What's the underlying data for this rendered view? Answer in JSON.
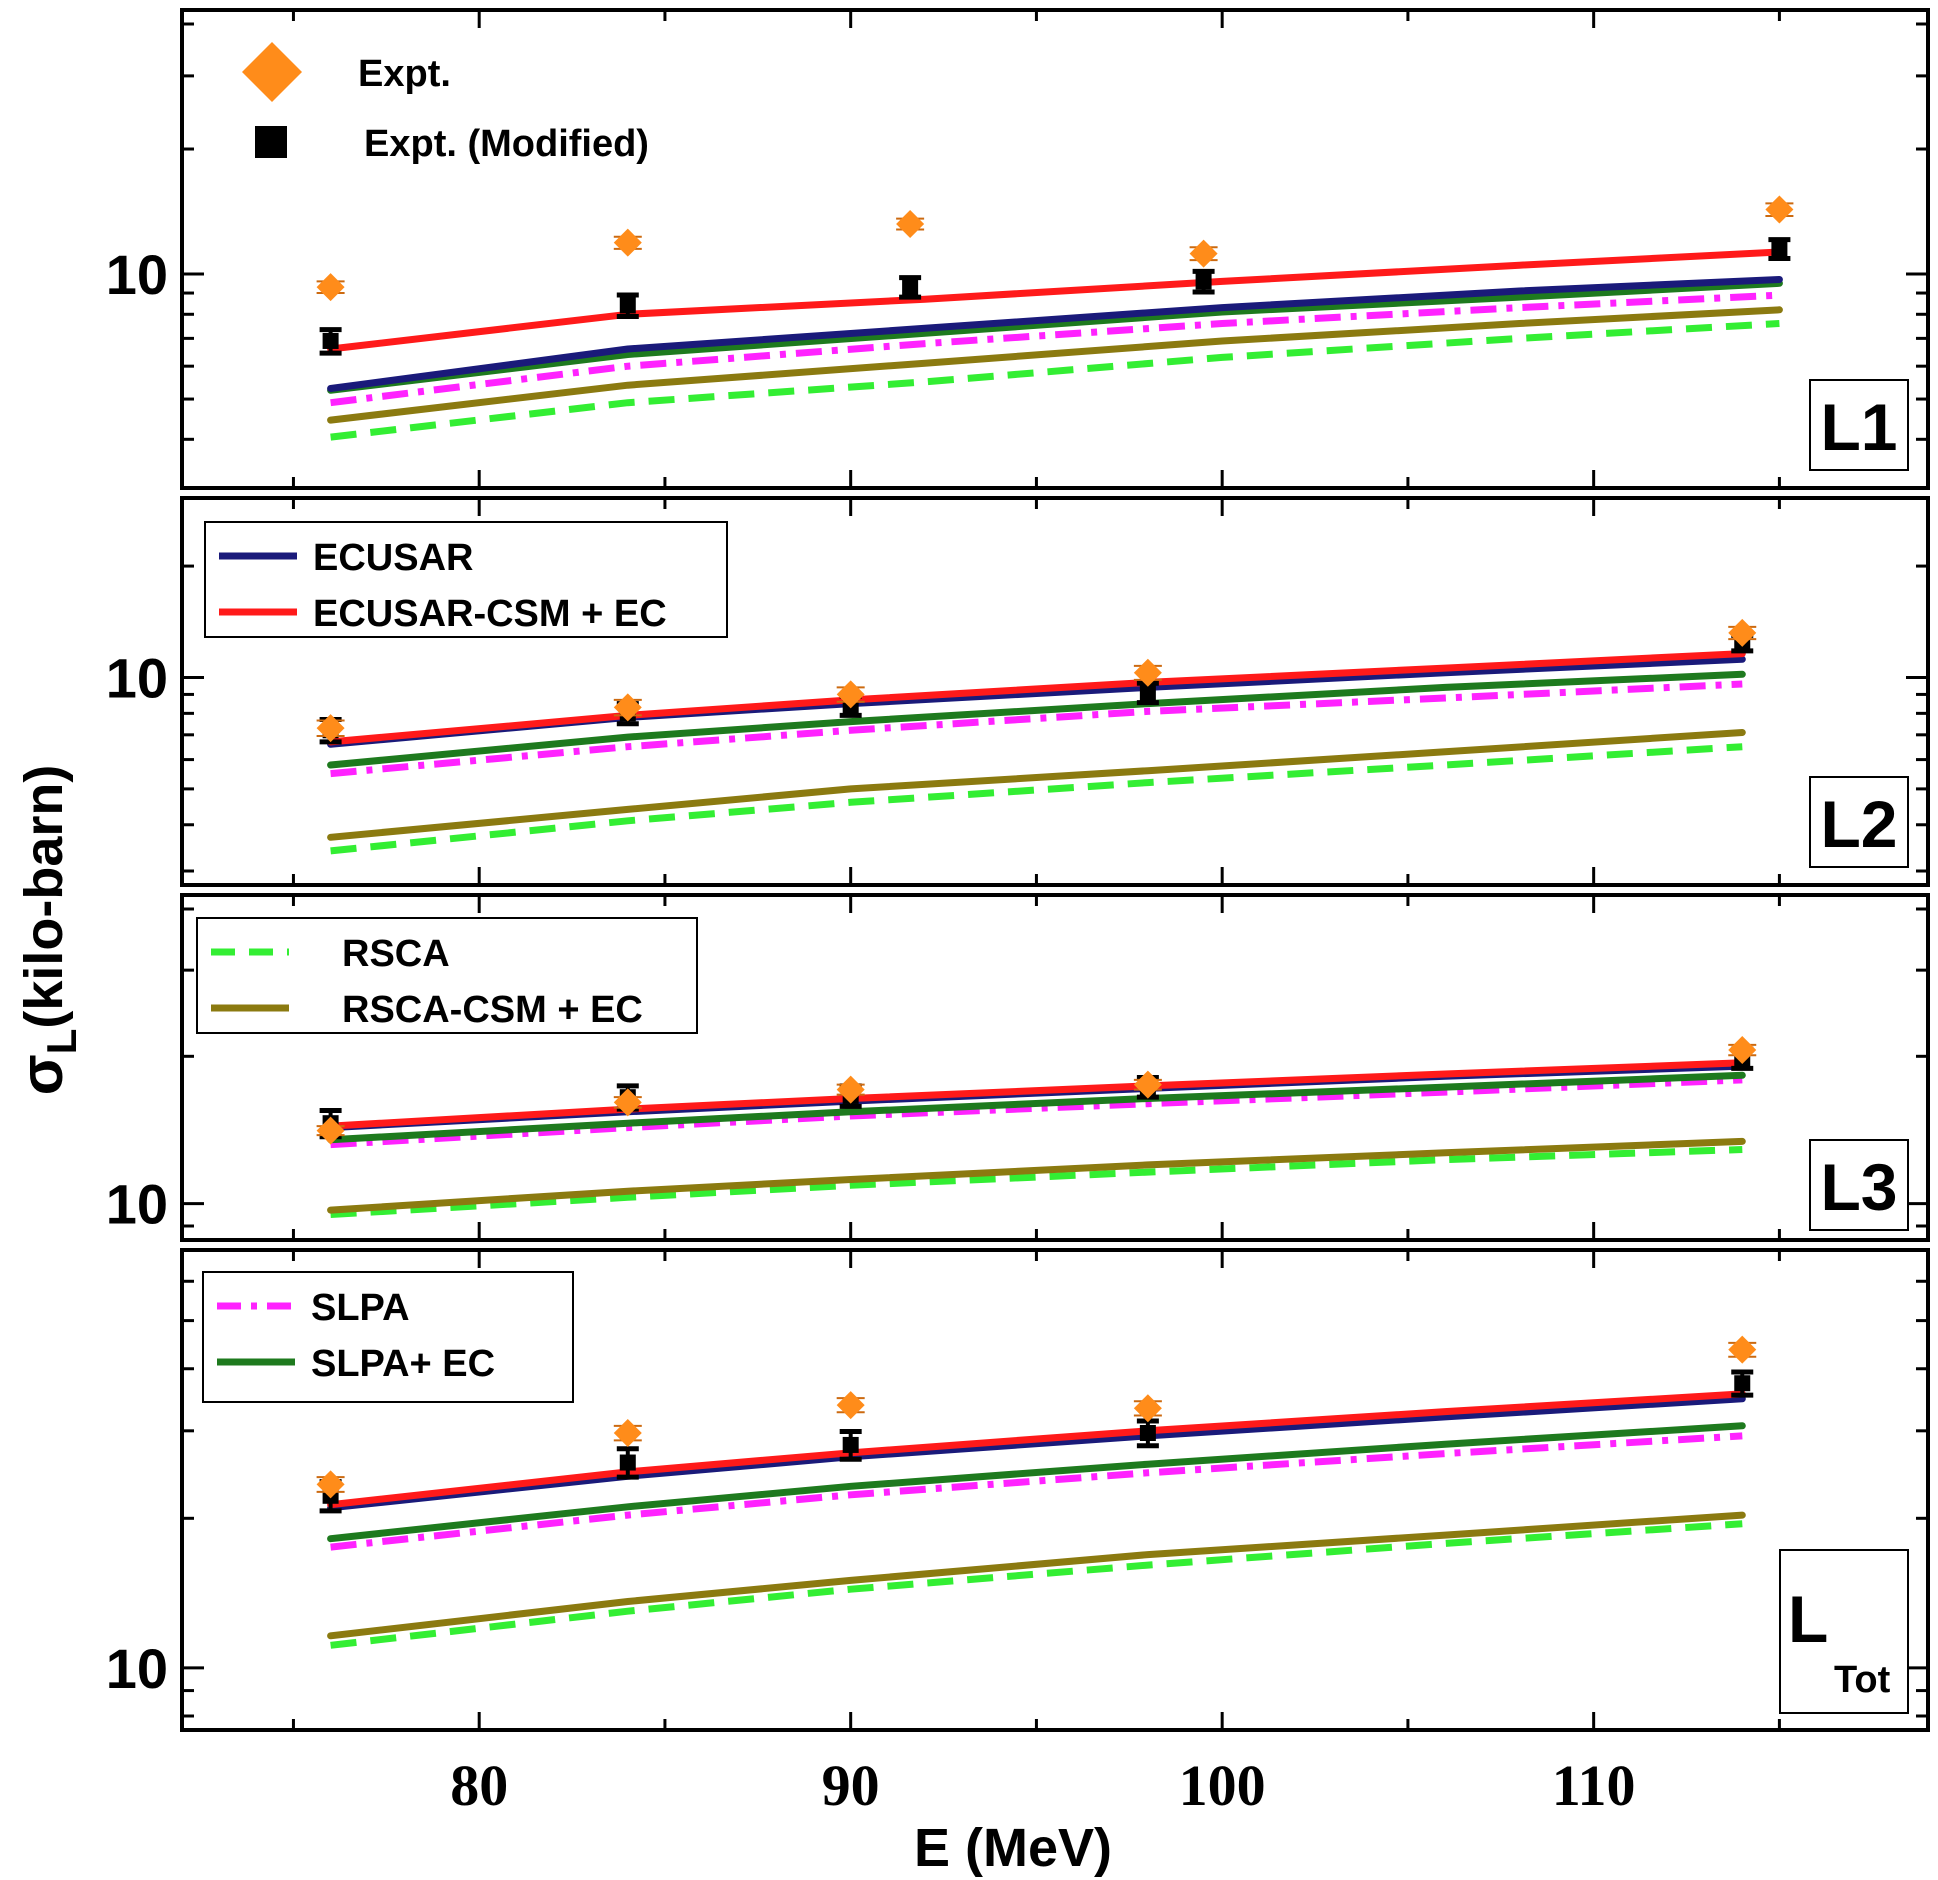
{
  "chart_data": {
    "type": "line",
    "xlabel": "E (MeV)",
    "ylabel_main": "σ",
    "ylabel_sub": "L",
    "ylabel_rest": "(kilo-barn)",
    "xlim": [
      72,
      119
    ],
    "x_ticks": [
      80,
      90,
      100,
      110
    ],
    "x_tick_labels": [
      "80",
      "90",
      "100",
      "110"
    ],
    "y_scale": "log",
    "colors": {
      "ECUSAR": "#1a1a7a",
      "ECUSAR-CSM + EC": "#ff1a1a",
      "RSCA": "#33ee33",
      "RSCA-CSM + EC": "#8b7a10",
      "SLPA": "#ff22ff",
      "SLPA+ EC": "#1e7a1e",
      "Expt.": "#ff8c1a",
      "Expt. (Modified)": "#000000"
    },
    "legend": [
      {
        "panel": "L1",
        "entries": [
          {
            "label": "Expt.",
            "marker": "diamond",
            "color": "#ff8c1a"
          },
          {
            "label": "Expt. (Modified)",
            "marker": "square",
            "color": "#000000"
          }
        ]
      },
      {
        "panel": "L2",
        "entries": [
          {
            "label": "ECUSAR",
            "style": "solid",
            "color": "#1a1a7a"
          },
          {
            "label": "ECUSAR-CSM + EC",
            "style": "solid",
            "color": "#ff1a1a"
          }
        ]
      },
      {
        "panel": "L3",
        "entries": [
          {
            "label": "RSCA",
            "style": "dashed",
            "color": "#33ee33"
          },
          {
            "label": "RSCA-CSM + EC",
            "style": "solid",
            "color": "#8b7a10"
          }
        ]
      },
      {
        "panel": "LTot",
        "entries": [
          {
            "label": "SLPA",
            "style": "dashdot",
            "color": "#ff22ff"
          },
          {
            "label": "SLPA+ EC",
            "style": "solid",
            "color": "#1e7a1e"
          }
        ]
      }
    ],
    "panels": [
      {
        "id": "L1",
        "tag": "L1",
        "tag_sub": "",
        "ylim": [
          3.3,
          40
        ],
        "y_label_values": [
          10
        ],
        "y_label_texts": [
          "10"
        ],
        "x": [
          76,
          84,
          92,
          100,
          108,
          115
        ],
        "series": [
          {
            "name": "ECUSAR",
            "values": [
              5.3,
              6.6,
              7.4,
              8.3,
              9.1,
              9.7
            ]
          },
          {
            "name": "ECUSAR-CSM + EC",
            "values": [
              6.6,
              8.0,
              8.7,
              9.6,
              10.5,
              11.3
            ]
          },
          {
            "name": "RSCA",
            "values": [
              4.05,
              4.9,
              5.5,
              6.3,
              7.0,
              7.6
            ]
          },
          {
            "name": "RSCA-CSM + EC",
            "values": [
              4.45,
              5.4,
              6.1,
              6.9,
              7.6,
              8.2
            ]
          },
          {
            "name": "SLPA",
            "values": [
              4.9,
              6.0,
              6.8,
              7.6,
              8.3,
              8.9
            ]
          },
          {
            "name": "SLPA+ EC",
            "values": [
              5.25,
              6.4,
              7.2,
              8.1,
              8.8,
              9.5
            ]
          }
        ],
        "expt": {
          "x": [
            76,
            84,
            91.6,
            99.5,
            115
          ],
          "values": [
            9.3,
            11.9,
            13.2,
            11.2,
            14.3
          ],
          "err": [
            0.3,
            0.4,
            0.4,
            0.4,
            0.5
          ]
        },
        "expt_mod": {
          "x": [
            76,
            84,
            91.6,
            99.5,
            115
          ],
          "values": [
            6.9,
            8.4,
            9.3,
            9.6,
            11.5
          ],
          "err": [
            0.45,
            0.5,
            0.5,
            0.55,
            0.6
          ]
        }
      },
      {
        "id": "L2",
        "tag": "L2",
        "tag_sub": "",
        "ylim": [
          3.0,
          28
        ],
        "y_label_values": [
          10
        ],
        "y_label_texts": [
          "10"
        ],
        "x": [
          76,
          84,
          90,
          98,
          106,
          114
        ],
        "series": [
          {
            "name": "ECUSAR",
            "values": [
              6.6,
              7.8,
              8.5,
              9.4,
              10.3,
              11.2
            ]
          },
          {
            "name": "ECUSAR-CSM + EC",
            "values": [
              6.7,
              7.9,
              8.7,
              9.7,
              10.6,
              11.6
            ]
          },
          {
            "name": "RSCA",
            "values": [
              3.4,
              4.1,
              4.6,
              5.2,
              5.8,
              6.5
            ]
          },
          {
            "name": "RSCA-CSM + EC",
            "values": [
              3.7,
              4.4,
              5.0,
              5.6,
              6.3,
              7.1
            ]
          },
          {
            "name": "SLPA",
            "values": [
              5.5,
              6.5,
              7.2,
              8.1,
              8.8,
              9.6
            ]
          },
          {
            "name": "SLPA+ EC",
            "values": [
              5.8,
              6.9,
              7.6,
              8.5,
              9.4,
              10.2
            ]
          }
        ],
        "expt": {
          "x": [
            76,
            84,
            90,
            98,
            114
          ],
          "values": [
            7.3,
            8.3,
            9.0,
            10.3,
            13.2
          ],
          "err": [
            0.35,
            0.4,
            0.4,
            0.45,
            0.5
          ]
        },
        "expt_mod": {
          "x": [
            76,
            84,
            90,
            98,
            114
          ],
          "values": [
            7.2,
            8.0,
            8.4,
            9.1,
            12.4
          ],
          "err": [
            0.5,
            0.5,
            0.5,
            0.55,
            0.6
          ]
        }
      },
      {
        "id": "L3",
        "tag": "L3",
        "tag_sub": "",
        "ylim": [
          9.0,
          40
        ],
        "y_label_values": [
          10
        ],
        "y_label_texts": [
          "10"
        ],
        "x": [
          76,
          84,
          90,
          98,
          106,
          114
        ],
        "series": [
          {
            "name": "ECUSAR",
            "values": [
              14.3,
              15.4,
              16.2,
              17.2,
              18.2,
              19.1
            ]
          },
          {
            "name": "ECUSAR-CSM + EC",
            "values": [
              14.4,
              15.6,
              16.4,
              17.4,
              18.4,
              19.4
            ]
          },
          {
            "name": "RSCA",
            "values": [
              9.5,
              10.3,
              10.9,
              11.6,
              12.3,
              12.9
            ]
          },
          {
            "name": "RSCA-CSM + EC",
            "values": [
              9.7,
              10.6,
              11.2,
              12.0,
              12.7,
              13.4
            ]
          },
          {
            "name": "SLPA",
            "values": [
              13.2,
              14.3,
              15.1,
              16.0,
              16.9,
              17.9
            ]
          },
          {
            "name": "SLPA+ EC",
            "values": [
              13.5,
              14.6,
              15.4,
              16.4,
              17.3,
              18.3
            ]
          }
        ],
        "expt": {
          "x": [
            76,
            84,
            90,
            98,
            114
          ],
          "values": [
            14.1,
            16.1,
            17.1,
            17.5,
            20.6
          ],
          "err": [
            0.3,
            0.4,
            0.4,
            0.4,
            0.5
          ]
        },
        "expt_mod": {
          "x": [
            76,
            84,
            90,
            98,
            114
          ],
          "values": [
            14.6,
            16.5,
            16.6,
            17.3,
            19.8
          ],
          "err": [
            0.9,
            0.9,
            0.8,
            0.8,
            0.9
          ]
        }
      },
      {
        "id": "LTot",
        "tag": "L",
        "tag_sub": "Tot",
        "ylim": [
          8.0,
          65
        ],
        "y_label_values": [
          10
        ],
        "y_label_texts": [
          "10"
        ],
        "x": [
          76,
          84,
          90,
          98,
          106,
          114
        ],
        "series": [
          {
            "name": "ECUSAR",
            "values": [
              21.0,
              24.3,
              26.6,
              29.3,
              32.0,
              34.8
            ]
          },
          {
            "name": "ECUSAR-CSM + EC",
            "values": [
              21.3,
              24.8,
              27.1,
              30.0,
              32.8,
              35.6
            ]
          },
          {
            "name": "RSCA",
            "values": [
              11.1,
              13.0,
              14.4,
              16.1,
              17.8,
              19.5
            ]
          },
          {
            "name": "RSCA-CSM + EC",
            "values": [
              11.6,
              13.6,
              15.0,
              16.9,
              18.5,
              20.3
            ]
          },
          {
            "name": "SLPA",
            "values": [
              17.5,
              20.3,
              22.3,
              24.7,
              27.0,
              29.3
            ]
          },
          {
            "name": "SLPA+ EC",
            "values": [
              18.2,
              21.1,
              23.2,
              25.7,
              28.2,
              30.7
            ]
          }
        ],
        "expt": {
          "x": [
            76,
            84,
            90,
            98,
            114
          ],
          "values": [
            23.4,
            29.7,
            33.8,
            33.3,
            43.7
          ],
          "err": [
            0.8,
            1.0,
            1.1,
            1.1,
            1.4
          ]
        },
        "expt_mod": {
          "x": [
            76,
            84,
            90,
            98,
            114
          ],
          "values": [
            22.2,
            25.9,
            28.1,
            29.7,
            37.4
          ],
          "err": [
            1.5,
            1.7,
            1.8,
            1.7,
            2.0
          ]
        }
      }
    ]
  }
}
